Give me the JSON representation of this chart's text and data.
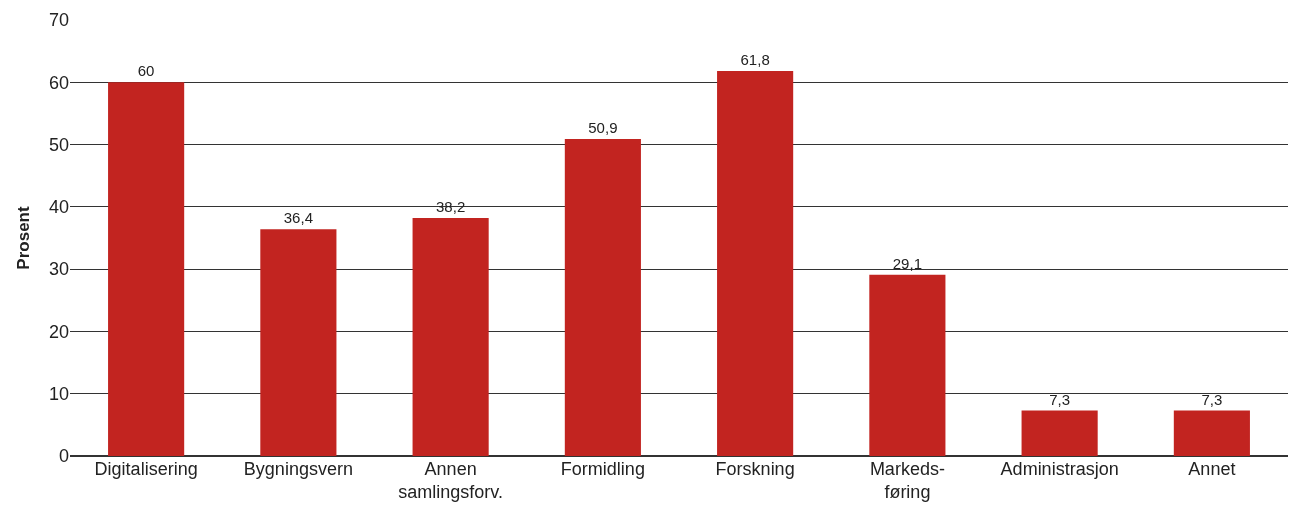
{
  "chart_data": {
    "type": "bar",
    "ylabel": "Prosent",
    "categories": [
      "Digitalisering",
      "Bygningsvern",
      "Annen\nsamlingsforv.",
      "Formidling",
      "Forskning",
      "Markeds-\nføring",
      "Administrasjon",
      "Annet"
    ],
    "values": [
      60,
      36.4,
      38.2,
      50.9,
      61.8,
      29.1,
      7.3,
      7.3
    ],
    "value_labels": [
      "60",
      "36,4",
      "38,2",
      "50,9",
      "61,8",
      "29,1",
      "7,3",
      "7,3"
    ],
    "color": "#c22420",
    "ylim": [
      0,
      70
    ],
    "yticks": [
      0,
      10,
      20,
      30,
      40,
      50,
      60,
      70
    ],
    "grid": "y",
    "legend": false
  }
}
